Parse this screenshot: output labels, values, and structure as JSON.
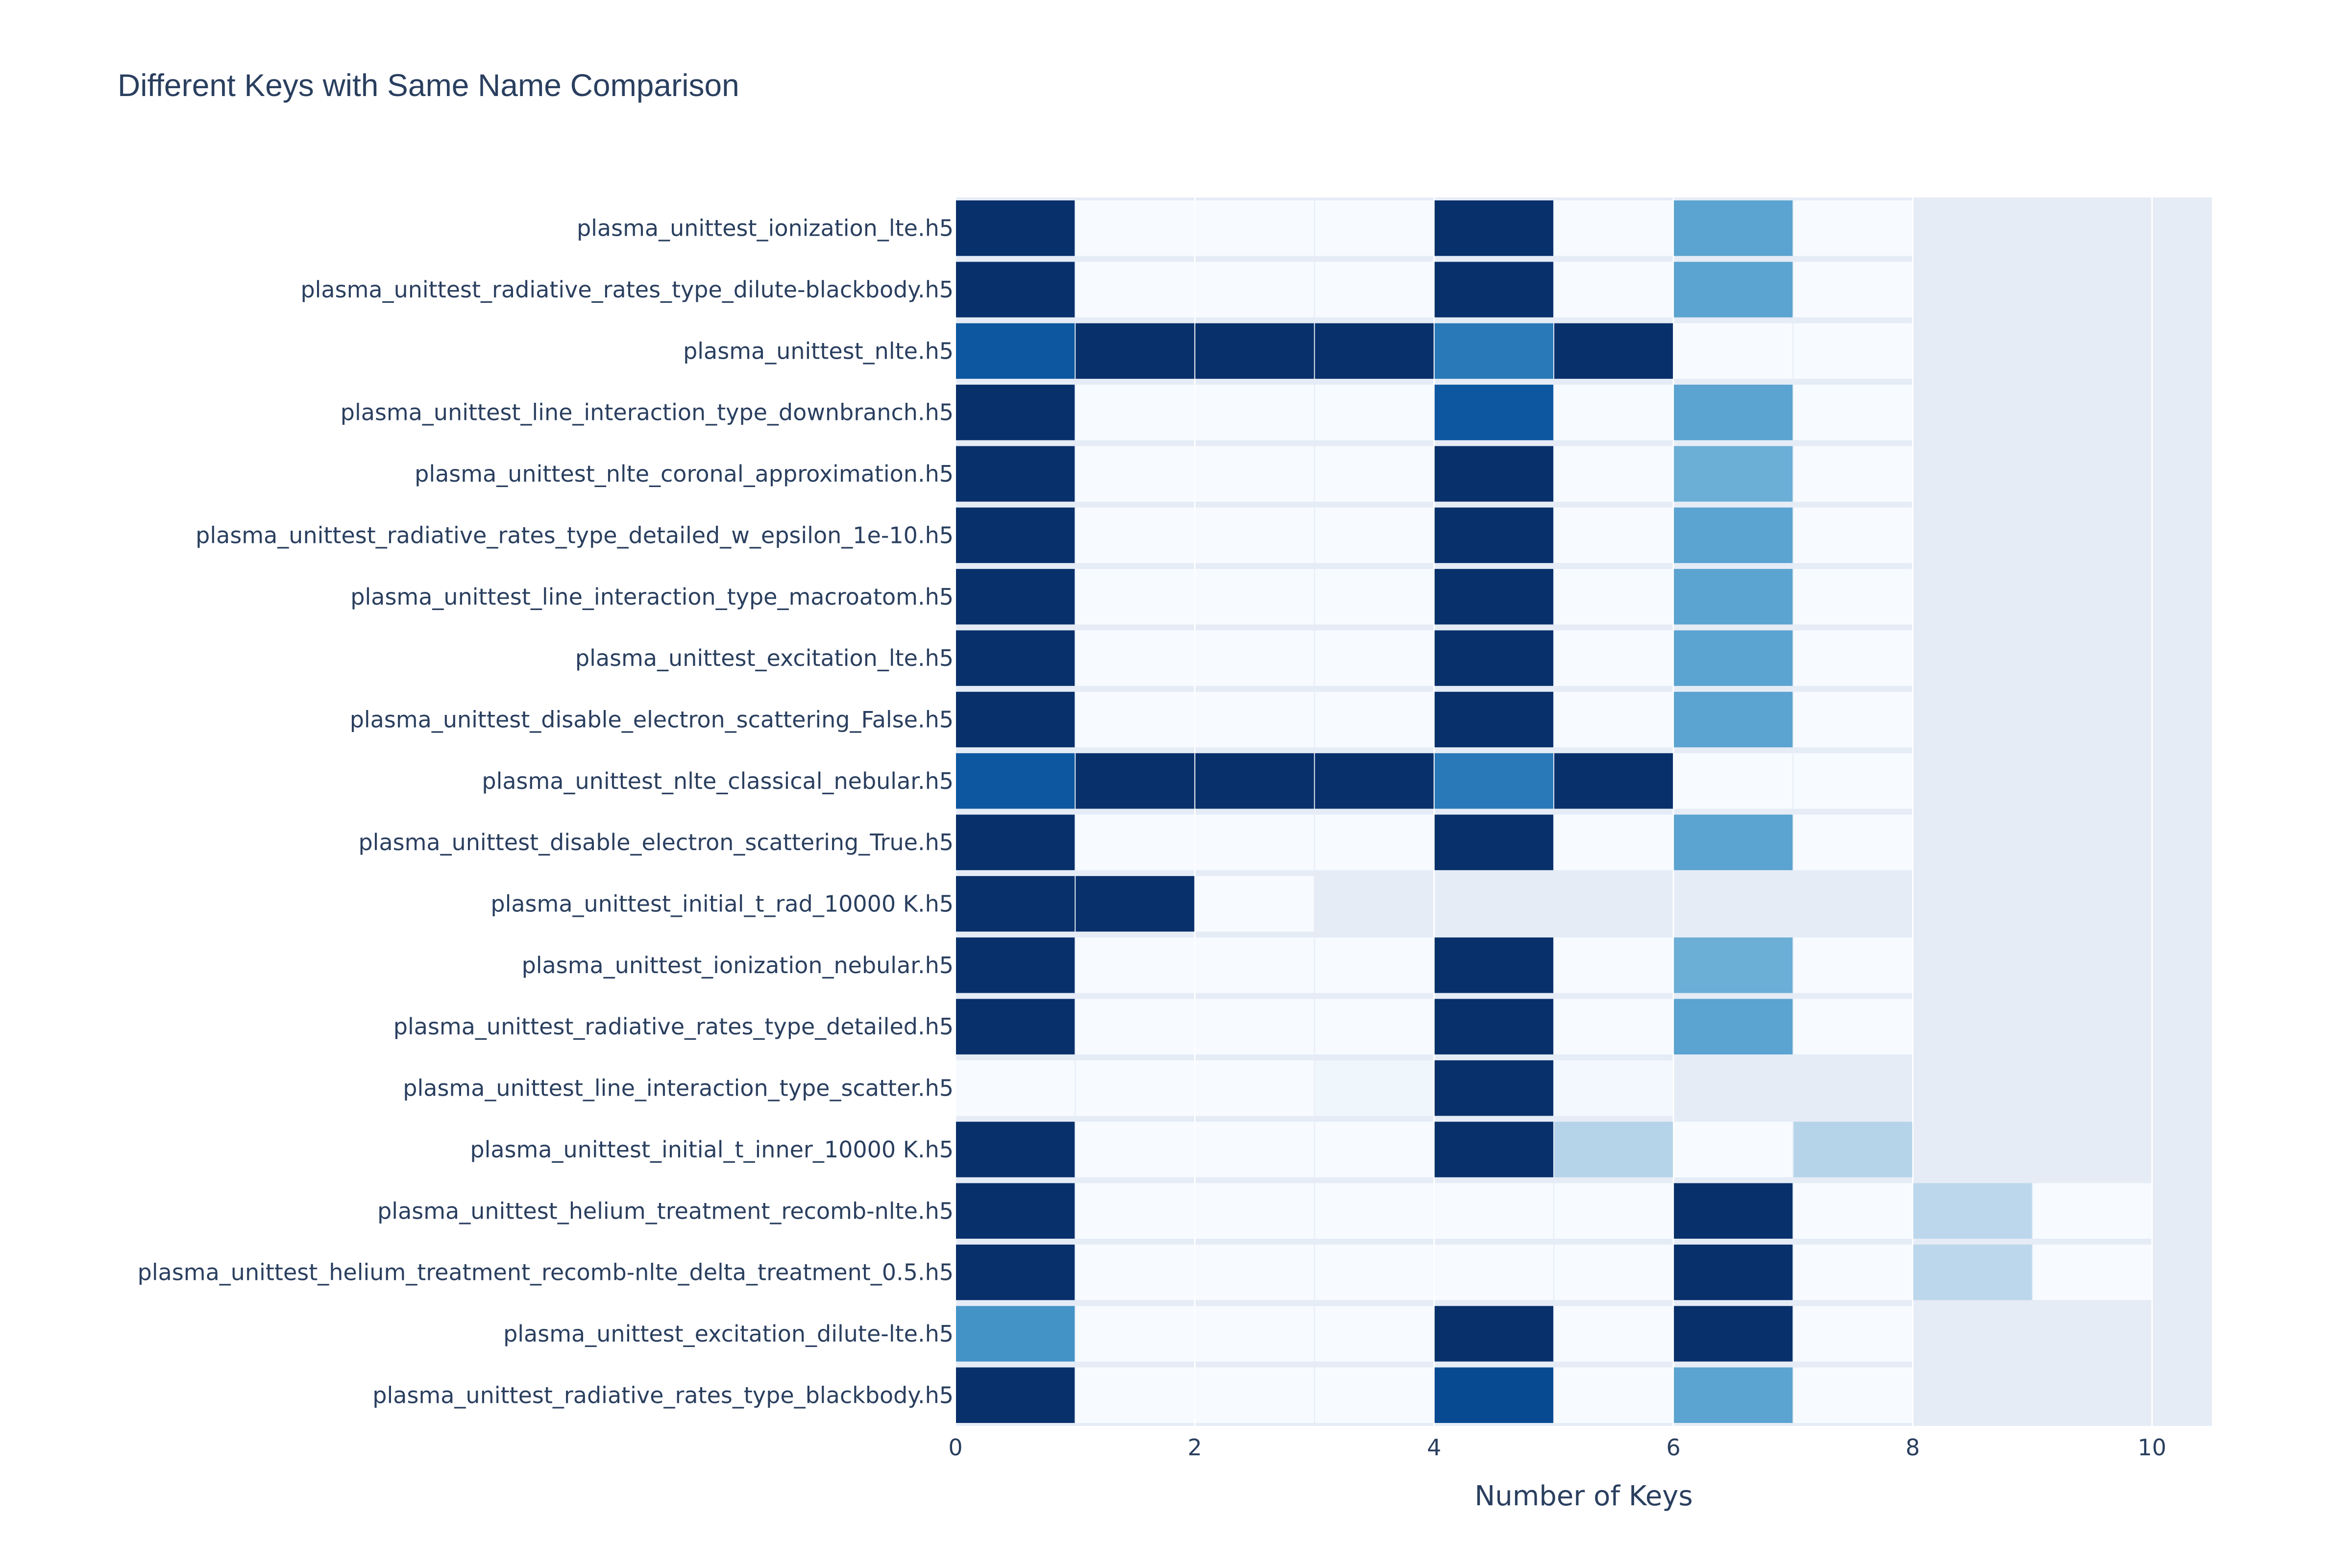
{
  "chart_data": {
    "type": "heatmap",
    "title": "Different Keys with Same Name Comparison",
    "xlabel": "Number of Keys",
    "ylabel": "",
    "xlim": [
      0,
      10.5
    ],
    "x_ticks": [
      0,
      2,
      4,
      6,
      8,
      10
    ],
    "grid": true,
    "colorscale": "Blues",
    "colorscale_stops": [
      "#f7fbff",
      "#deebf7",
      "#c6dbef",
      "#9ecae1",
      "#6baed6",
      "#4292c6",
      "#2171b5",
      "#08519c",
      "#08306b"
    ],
    "plot_background": "#e5ecf6",
    "rows": [
      {
        "label": "plasma_unittest_ionization_lte.h5",
        "values": [
          1.0,
          0.0,
          0.0,
          0.0,
          1.0,
          0.0,
          0.55,
          0.0
        ]
      },
      {
        "label": "plasma_unittest_radiative_rates_type_dilute-blackbody.h5",
        "values": [
          1.0,
          0.0,
          0.0,
          0.0,
          1.0,
          0.0,
          0.55,
          0.0
        ]
      },
      {
        "label": "plasma_unittest_nlte.h5",
        "values": [
          0.85,
          1.0,
          1.0,
          1.0,
          0.72,
          1.0,
          0.0,
          0.0
        ]
      },
      {
        "label": "plasma_unittest_line_interaction_type_downbranch.h5",
        "values": [
          1.0,
          0.0,
          0.0,
          0.0,
          0.85,
          0.0,
          0.55,
          0.0
        ]
      },
      {
        "label": "plasma_unittest_nlte_coronal_approximation.h5",
        "values": [
          1.0,
          0.0,
          0.0,
          0.0,
          1.0,
          0.0,
          0.5,
          0.0
        ]
      },
      {
        "label": "plasma_unittest_radiative_rates_type_detailed_w_epsilon_1e-10.h5",
        "values": [
          1.0,
          0.0,
          0.0,
          0.0,
          1.0,
          0.0,
          0.55,
          0.0
        ]
      },
      {
        "label": "plasma_unittest_line_interaction_type_macroatom.h5",
        "values": [
          1.0,
          0.0,
          0.0,
          0.0,
          1.0,
          0.0,
          0.55,
          0.0
        ]
      },
      {
        "label": "plasma_unittest_excitation_lte.h5",
        "values": [
          1.0,
          0.0,
          0.0,
          0.0,
          1.0,
          0.0,
          0.55,
          0.0
        ]
      },
      {
        "label": "plasma_unittest_disable_electron_scattering_False.h5",
        "values": [
          1.0,
          0.0,
          0.0,
          0.0,
          1.0,
          0.0,
          0.55,
          0.0
        ]
      },
      {
        "label": "plasma_unittest_nlte_classical_nebular.h5",
        "values": [
          0.85,
          1.0,
          1.0,
          1.0,
          0.72,
          1.0,
          0.0,
          0.0
        ]
      },
      {
        "label": "plasma_unittest_disable_electron_scattering_True.h5",
        "values": [
          1.0,
          0.0,
          0.0,
          0.0,
          1.0,
          0.0,
          0.55,
          0.0
        ]
      },
      {
        "label": "plasma_unittest_initial_t_rad_10000 K.h5",
        "values": [
          1.0,
          1.0,
          0.0
        ]
      },
      {
        "label": "plasma_unittest_ionization_nebular.h5",
        "values": [
          1.0,
          0.0,
          0.0,
          0.0,
          1.0,
          0.0,
          0.5,
          0.0
        ]
      },
      {
        "label": "plasma_unittest_radiative_rates_type_detailed.h5",
        "values": [
          1.0,
          0.0,
          0.0,
          0.0,
          1.0,
          0.0,
          0.55,
          0.0
        ]
      },
      {
        "label": "plasma_unittest_line_interaction_type_scatter.h5",
        "values": [
          0.0,
          0.0,
          0.0,
          0.04,
          1.0,
          0.02
        ]
      },
      {
        "label": "plasma_unittest_initial_t_inner_10000 K.h5",
        "values": [
          1.0,
          0.0,
          0.0,
          0.0,
          1.0,
          0.3,
          0.0,
          0.3
        ]
      },
      {
        "label": "plasma_unittest_helium_treatment_recomb-nlte.h5",
        "values": [
          1.0,
          0.0,
          0.0,
          0.0,
          0.0,
          0.0,
          1.0,
          0.0,
          0.28,
          0.0
        ]
      },
      {
        "label": "plasma_unittest_helium_treatment_recomb-nlte_delta_treatment_0.5.h5",
        "values": [
          1.0,
          0.0,
          0.0,
          0.0,
          0.0,
          0.0,
          1.0,
          0.0,
          0.28,
          0.0
        ]
      },
      {
        "label": "plasma_unittest_excitation_dilute-lte.h5",
        "values": [
          0.62,
          0.0,
          0.0,
          0.0,
          1.0,
          0.0,
          1.0,
          0.0
        ]
      },
      {
        "label": "plasma_unittest_radiative_rates_type_blackbody.h5",
        "values": [
          1.0,
          0.0,
          0.0,
          0.0,
          0.9,
          0.0,
          0.55,
          0.0
        ]
      }
    ]
  }
}
